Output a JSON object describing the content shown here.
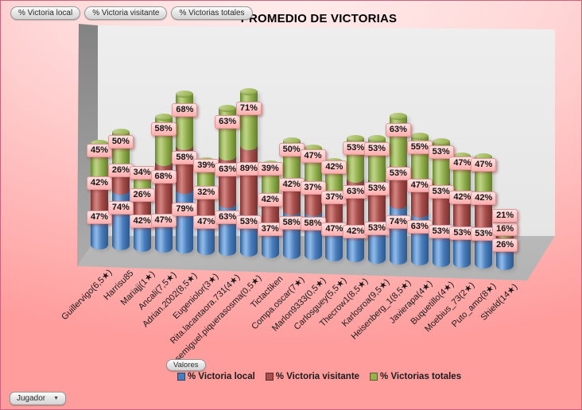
{
  "window": {
    "border_color": "#cf5f7b",
    "background_top": "#ffeeee",
    "background_bottom": "#ff9c9c"
  },
  "pivot_buttons": {
    "series_fields": [
      {
        "label": "% Victoria local"
      },
      {
        "label": "% Victoria visitante"
      },
      {
        "label": "% Victorias totales"
      }
    ],
    "values_field": {
      "label": "Valores"
    },
    "axis_field": {
      "label": "Jugador",
      "dropdown_icon": "▼"
    }
  },
  "chart_data": {
    "type": "bar",
    "subtype": "3d-stacked-cylinder",
    "title": "PROMEDIO DE VICTORIAS",
    "value_label_format": "percent",
    "legend_position": "bottom",
    "xlabel": "Jugador",
    "ylabel": "",
    "gridlines": false,
    "categories": [
      "Guillervigo(6,5★)",
      "Harrisu85",
      "Mariajj(1★)",
      "Ancali(7,5★)",
      "Adrian.2002(8,5★)",
      "Eugeniolor(3★)",
      "Rita.lacantaora.731(4★)",
      "Josemiguel.piquerasosma(0,5★)",
      "Tictactiken",
      "Compa.oscar(7★)",
      "Marlon9333(0,5★)",
      "Carlosguey(5,5★)",
      "Thecrow1(8,5★)",
      "Karlosroa(9,5★)",
      "Heisenberg_1(8,5★)",
      "Javierapa(4★)",
      "Buquetillo(4★)",
      "Moebius_73(2★)",
      "Puto_amo(8★)",
      "Shield(14★)"
    ],
    "series": [
      {
        "name": "% Victoria local",
        "color": "#4a7ebb",
        "values": [
          47,
          74,
          42,
          47,
          79,
          47,
          63,
          53,
          37,
          58,
          58,
          47,
          42,
          53,
          74,
          63,
          53,
          53,
          53,
          26
        ]
      },
      {
        "name": "% Victoria visitante",
        "color": "#a84e4b",
        "values": [
          42,
          26,
          26,
          68,
          58,
          32,
          63,
          89,
          42,
          42,
          37,
          37,
          63,
          53,
          53,
          47,
          53,
          42,
          42,
          16
        ]
      },
      {
        "name": "% Victorias totales",
        "color": "#93b24d",
        "values": [
          45,
          50,
          34,
          58,
          68,
          39,
          63,
          71,
          39,
          50,
          47,
          42,
          53,
          53,
          63,
          55,
          53,
          47,
          47,
          21
        ]
      }
    ]
  }
}
